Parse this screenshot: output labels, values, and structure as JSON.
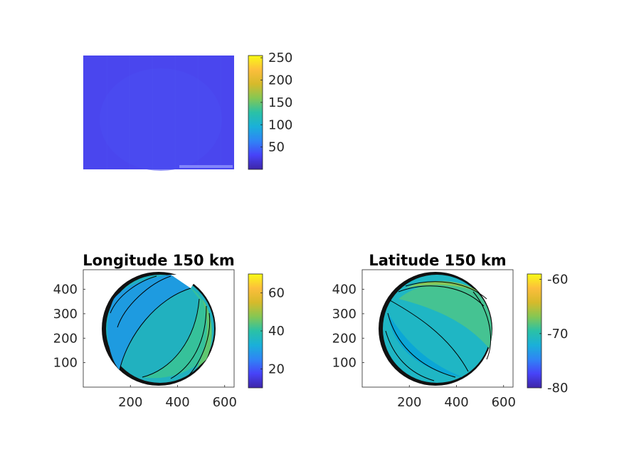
{
  "colormap": [
    "#3e26a8",
    "#4743f8",
    "#2f84f5",
    "#1ab0d9",
    "#2ac1a6",
    "#85c753",
    "#d6ba2b",
    "#fcbe3c",
    "#f9fb15"
  ],
  "chart_data": [
    {
      "type": "heatmap",
      "title": "",
      "description_values": {
        "uniform_value": 20
      },
      "show_axes_ticks": false,
      "colorbar": {
        "range": [
          0,
          255
        ],
        "ticks": [
          50,
          100,
          150,
          200,
          250
        ]
      }
    },
    {
      "type": "heatmap",
      "title": "Longitude 150 km",
      "xlim": [
        0,
        640
      ],
      "ylim": [
        0,
        480
      ],
      "xticks": [
        200,
        400,
        600
      ],
      "yticks": [
        100,
        200,
        300,
        400
      ],
      "disk": {
        "center": [
          330,
          240
        ],
        "radius": 190
      },
      "contour_levels": [
        15,
        20,
        25,
        30,
        35,
        40,
        45,
        50,
        55
      ],
      "colorbar": {
        "range": [
          10,
          70
        ],
        "ticks": [
          20,
          40,
          60
        ]
      }
    },
    {
      "type": "heatmap",
      "title": "Latitude 150 km",
      "xlim": [
        0,
        640
      ],
      "ylim": [
        0,
        480
      ],
      "xticks": [
        200,
        400,
        600
      ],
      "yticks": [
        100,
        200,
        300,
        400
      ],
      "disk": {
        "center": [
          310,
          240
        ],
        "radius": 190
      },
      "contour_levels": [
        -80,
        -78,
        -76,
        -74,
        -72,
        -70,
        -68,
        -66,
        -64,
        -62
      ],
      "colorbar": {
        "range": [
          -80,
          -59
        ],
        "ticks": [
          -80,
          -70,
          -60
        ]
      }
    }
  ]
}
